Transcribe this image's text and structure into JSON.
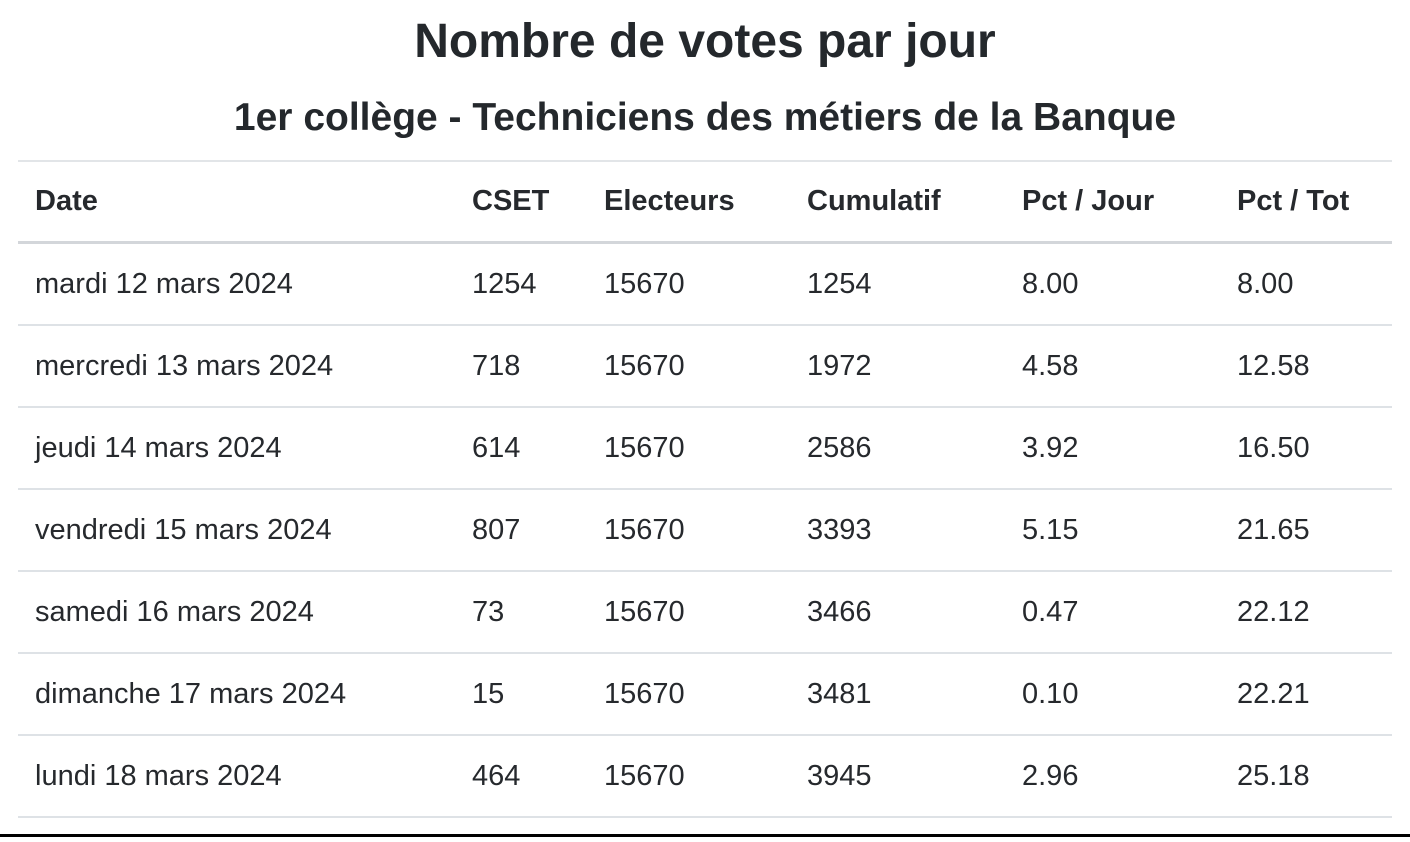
{
  "page": {
    "title": "Nombre de votes par jour",
    "subtitle": "1er collège - Techniciens des métiers de la Banque"
  },
  "table": {
    "columns": [
      "Date",
      "CSET",
      "Electeurs",
      "Cumulatif",
      "Pct / Jour",
      "Pct / Tot"
    ],
    "rows": [
      {
        "date": "mardi 12 mars 2024",
        "cset": "1254",
        "electeurs": "15670",
        "cumulatif": "1254",
        "pct_jour": "8.00",
        "pct_tot": "8.00"
      },
      {
        "date": "mercredi 13 mars 2024",
        "cset": "718",
        "electeurs": "15670",
        "cumulatif": "1972",
        "pct_jour": "4.58",
        "pct_tot": "12.58"
      },
      {
        "date": "jeudi 14 mars 2024",
        "cset": "614",
        "electeurs": "15670",
        "cumulatif": "2586",
        "pct_jour": "3.92",
        "pct_tot": "16.50"
      },
      {
        "date": "vendredi 15 mars 2024",
        "cset": "807",
        "electeurs": "15670",
        "cumulatif": "3393",
        "pct_jour": "5.15",
        "pct_tot": "21.65"
      },
      {
        "date": "samedi 16 mars 2024",
        "cset": "73",
        "electeurs": "15670",
        "cumulatif": "3466",
        "pct_jour": "0.47",
        "pct_tot": "22.12"
      },
      {
        "date": "dimanche 17 mars 2024",
        "cset": "15",
        "electeurs": "15670",
        "cumulatif": "3481",
        "pct_jour": "0.10",
        "pct_tot": "22.21"
      },
      {
        "date": "lundi 18 mars 2024",
        "cset": "464",
        "electeurs": "15670",
        "cumulatif": "3945",
        "pct_jour": "2.96",
        "pct_tot": "25.18"
      }
    ]
  },
  "colors": {
    "text": "#212529",
    "row_border": "#dee2e6",
    "header_border": "#d3d6da",
    "bottom_rule": "#000000"
  }
}
